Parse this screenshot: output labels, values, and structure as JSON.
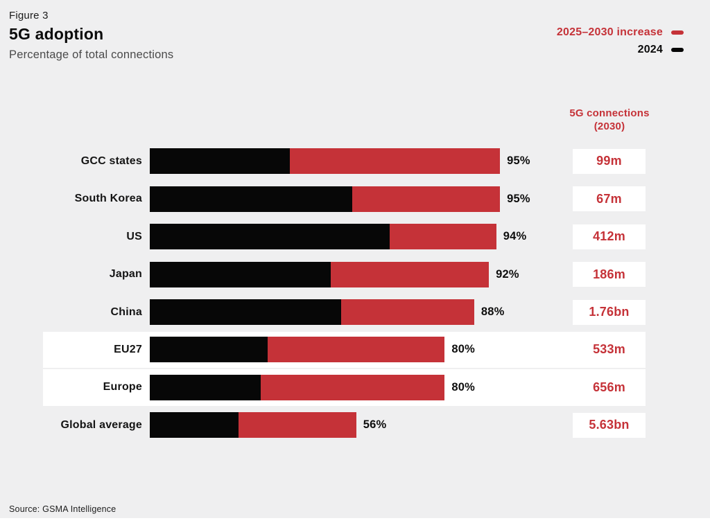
{
  "header": {
    "figure_label": "Figure 3",
    "title": "5G adoption",
    "subtitle": "Percentage of total connections"
  },
  "legend": {
    "items": [
      {
        "label": "2025–2030 increase",
        "color": "#c53238"
      },
      {
        "label": "2024",
        "color": "#070707"
      }
    ]
  },
  "column_header": {
    "line1": "5G connections",
    "line2": "(2030)"
  },
  "rows": [
    {
      "label": "GCC states",
      "pct_label": "95%",
      "total": 95,
      "v2024": 38,
      "value_2030": "99m",
      "highlighted": false
    },
    {
      "label": "South Korea",
      "pct_label": "95%",
      "total": 95,
      "v2024": 55,
      "value_2030": "67m",
      "highlighted": false
    },
    {
      "label": "US",
      "pct_label": "94%",
      "total": 94,
      "v2024": 65,
      "value_2030": "412m",
      "highlighted": false
    },
    {
      "label": "Japan",
      "pct_label": "92%",
      "total": 92,
      "v2024": 49,
      "value_2030": "186m",
      "highlighted": false
    },
    {
      "label": "China",
      "pct_label": "88%",
      "total": 88,
      "v2024": 52,
      "value_2030": "1.76bn",
      "highlighted": false
    },
    {
      "label": "EU27",
      "pct_label": "80%",
      "total": 80,
      "v2024": 32,
      "value_2030": "533m",
      "highlighted": true
    },
    {
      "label": "Europe",
      "pct_label": "80%",
      "total": 80,
      "v2024": 30,
      "value_2030": "656m",
      "highlighted": true
    },
    {
      "label": "Global average",
      "pct_label": "56%",
      "total": 56,
      "v2024": 24,
      "value_2030": "5.63bn",
      "highlighted": false
    }
  ],
  "source": "Source: GSMA Intelligence",
  "colors": {
    "accent_red": "#c53238",
    "bar_black": "#070707",
    "background": "#efeff0",
    "highlight_band": "#ffffff"
  },
  "chart_data": {
    "type": "bar",
    "orientation": "horizontal",
    "stacked": true,
    "figure_label": "Figure 3",
    "title": "5G adoption",
    "subtitle": "Percentage of total connections",
    "categories": [
      "GCC states",
      "South Korea",
      "US",
      "Japan",
      "China",
      "EU27",
      "Europe",
      "Global average"
    ],
    "series": [
      {
        "name": "2024",
        "color": "#070707",
        "values": [
          38,
          55,
          65,
          49,
          52,
          32,
          30,
          24
        ]
      },
      {
        "name": "2025–2030 increase",
        "color": "#c53238",
        "values": [
          57,
          40,
          29,
          43,
          36,
          48,
          50,
          32
        ]
      }
    ],
    "totals": [
      95,
      95,
      94,
      92,
      88,
      80,
      80,
      56
    ],
    "total_labels": [
      "95%",
      "95%",
      "94%",
      "92%",
      "88%",
      "80%",
      "80%",
      "56%"
    ],
    "annotation_column": {
      "header": "5G connections (2030)",
      "values": [
        "99m",
        "67m",
        "412m",
        "186m",
        "1.76bn",
        "533m",
        "656m",
        "5.63bn"
      ]
    },
    "highlighted_categories": [
      "EU27",
      "Europe"
    ],
    "xlim": [
      0,
      100
    ],
    "grid": false,
    "legend_position": "top-right",
    "source": "Source: GSMA Intelligence"
  }
}
